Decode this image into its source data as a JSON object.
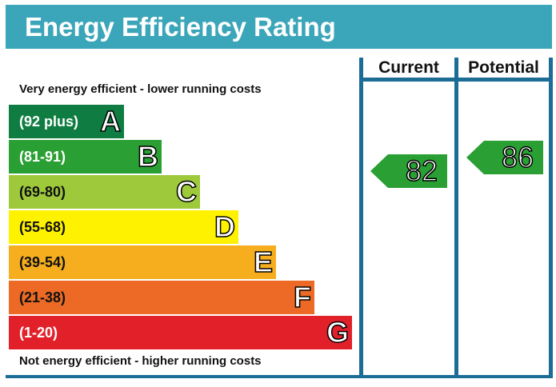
{
  "title": "Energy Efficiency Rating",
  "chart_data": {
    "type": "bar",
    "columns": [
      "Current",
      "Potential"
    ],
    "top_note": "Very energy efficient - lower running costs",
    "bottom_note": "Not energy efficient - higher running costs",
    "bands": [
      {
        "range": "(92 plus)",
        "letter": "A",
        "color": "#0f7d42",
        "text_color": "#ffffff"
      },
      {
        "range": "(81-91)",
        "letter": "B",
        "color": "#2a9f34",
        "text_color": "#ffffff"
      },
      {
        "range": "(69-80)",
        "letter": "C",
        "color": "#9dc93b",
        "text_color": "#111111"
      },
      {
        "range": "(55-68)",
        "letter": "D",
        "color": "#fff200",
        "text_color": "#111111"
      },
      {
        "range": "(39-54)",
        "letter": "E",
        "color": "#f6ae1e",
        "text_color": "#111111"
      },
      {
        "range": "(21-38)",
        "letter": "F",
        "color": "#ec6a25",
        "text_color": "#111111"
      },
      {
        "range": "(1-20)",
        "letter": "G",
        "color": "#e2202a",
        "text_color": "#ffffff"
      }
    ],
    "current": {
      "value": "82",
      "band": "B",
      "color": "#2a9f34"
    },
    "potential": {
      "value": "86",
      "band": "B",
      "color": "#2a9f34"
    }
  }
}
